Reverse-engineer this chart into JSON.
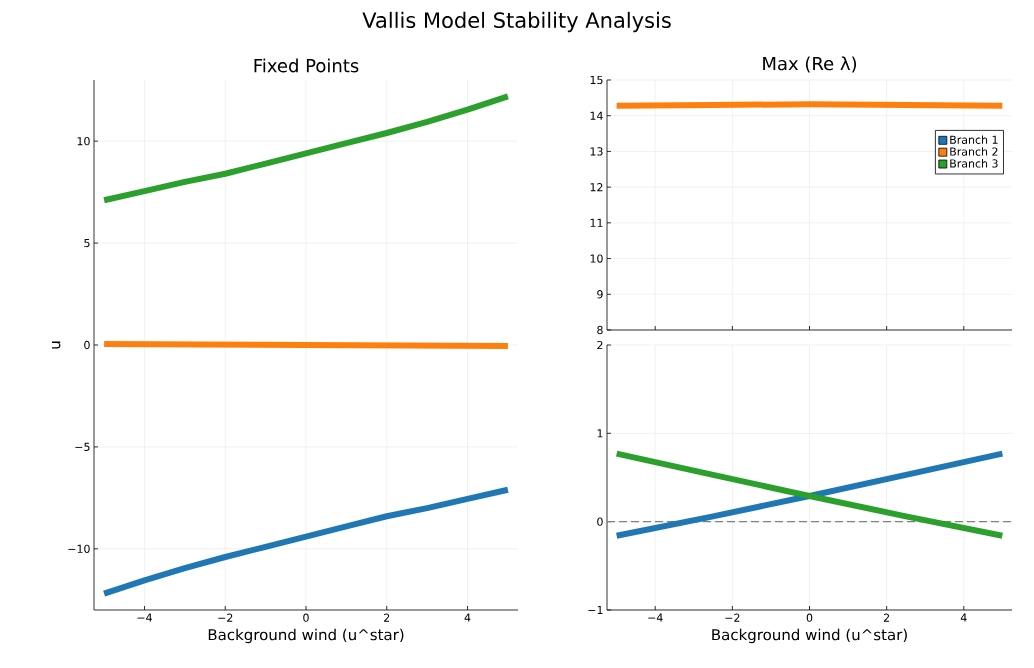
{
  "chart_data": [
    {
      "type": "line",
      "title": "Vallis Model Stability Analysis",
      "subtitle": "Fixed Points",
      "xlabel": "Background wind (u^star)",
      "ylabel": "u",
      "x": [
        -5,
        -4,
        -3,
        -2,
        -1,
        0,
        1,
        2,
        3,
        4,
        5
      ],
      "series": [
        {
          "color": "#1f77b4",
          "values": [
            -12.2,
            -11.55,
            -10.95,
            -10.4,
            -9.9,
            -9.4,
            -8.9,
            -8.4,
            -8.0,
            -7.55,
            -7.1
          ]
        },
        {
          "color": "#ff7f0e",
          "values": [
            0.05,
            0.04,
            0.03,
            0.02,
            0.01,
            0.0,
            -0.01,
            -0.02,
            -0.03,
            -0.04,
            -0.05
          ]
        },
        {
          "color": "#2ca02c",
          "values": [
            7.1,
            7.55,
            8.0,
            8.4,
            8.9,
            9.4,
            9.9,
            10.4,
            10.95,
            11.55,
            12.2
          ]
        }
      ],
      "xlim": [
        -5.25,
        5.25
      ],
      "ylim": [
        -13,
        13
      ],
      "xticks": [
        {
          "value": -4,
          "label": "−4"
        },
        {
          "value": -2,
          "label": "−2"
        },
        0,
        2,
        4
      ],
      "yticks": [
        {
          "value": -10,
          "label": "−10"
        },
        {
          "value": -5,
          "label": "−5"
        },
        0,
        5,
        10
      ],
      "grid": true
    },
    {
      "type": "line",
      "title": "Max (Re λ)",
      "x": [
        -5,
        -2.5,
        0,
        2.5,
        5
      ],
      "series": [
        {
          "name": "Branch 1",
          "color": "#1f77b4",
          "values": [
            null,
            null,
            null,
            null,
            null
          ]
        },
        {
          "name": "Branch 2",
          "color": "#ff7f0e",
          "values": [
            14.28,
            14.3,
            14.32,
            14.3,
            14.28
          ]
        },
        {
          "name": "Branch 3",
          "color": "#2ca02c",
          "values": [
            null,
            null,
            null,
            null,
            null
          ]
        }
      ],
      "xlim": [
        -5.25,
        5.25
      ],
      "ylim": [
        8,
        15
      ],
      "xticks": [
        {
          "value": -4,
          "label": null
        },
        {
          "value": -2,
          "label": null
        },
        {
          "value": 0,
          "label": null
        },
        {
          "value": 2,
          "label": null
        },
        {
          "value": 4,
          "label": null
        }
      ],
      "yticks": [
        8,
        9,
        10,
        11,
        12,
        13,
        14,
        15
      ],
      "tick_labels": "y",
      "grid": true,
      "legend": "top right"
    },
    {
      "type": "line",
      "xlabel": "Background wind (u^star)",
      "x": [
        -5,
        -2.5,
        0,
        2.5,
        5
      ],
      "series": [
        {
          "color": "#1f77b4",
          "values": [
            -0.16,
            0.06,
            0.29,
            0.53,
            0.77
          ]
        },
        {
          "color": "#2ca02c",
          "values": [
            0.77,
            0.53,
            0.29,
            0.06,
            -0.16
          ]
        }
      ],
      "xlim": [
        -5.25,
        5.25
      ],
      "ylim": [
        -1,
        2
      ],
      "xticks": [
        {
          "value": -4,
          "label": "−4"
        },
        {
          "value": -2,
          "label": "−2"
        },
        0,
        2,
        4
      ],
      "yticks": [
        {
          "value": -1,
          "label": "−1"
        },
        0,
        1,
        2
      ],
      "ref_lines": [
        {
          "axis": "y",
          "value": 0,
          "color": "#808080",
          "line_style": "dashed"
        }
      ],
      "grid": true
    }
  ]
}
